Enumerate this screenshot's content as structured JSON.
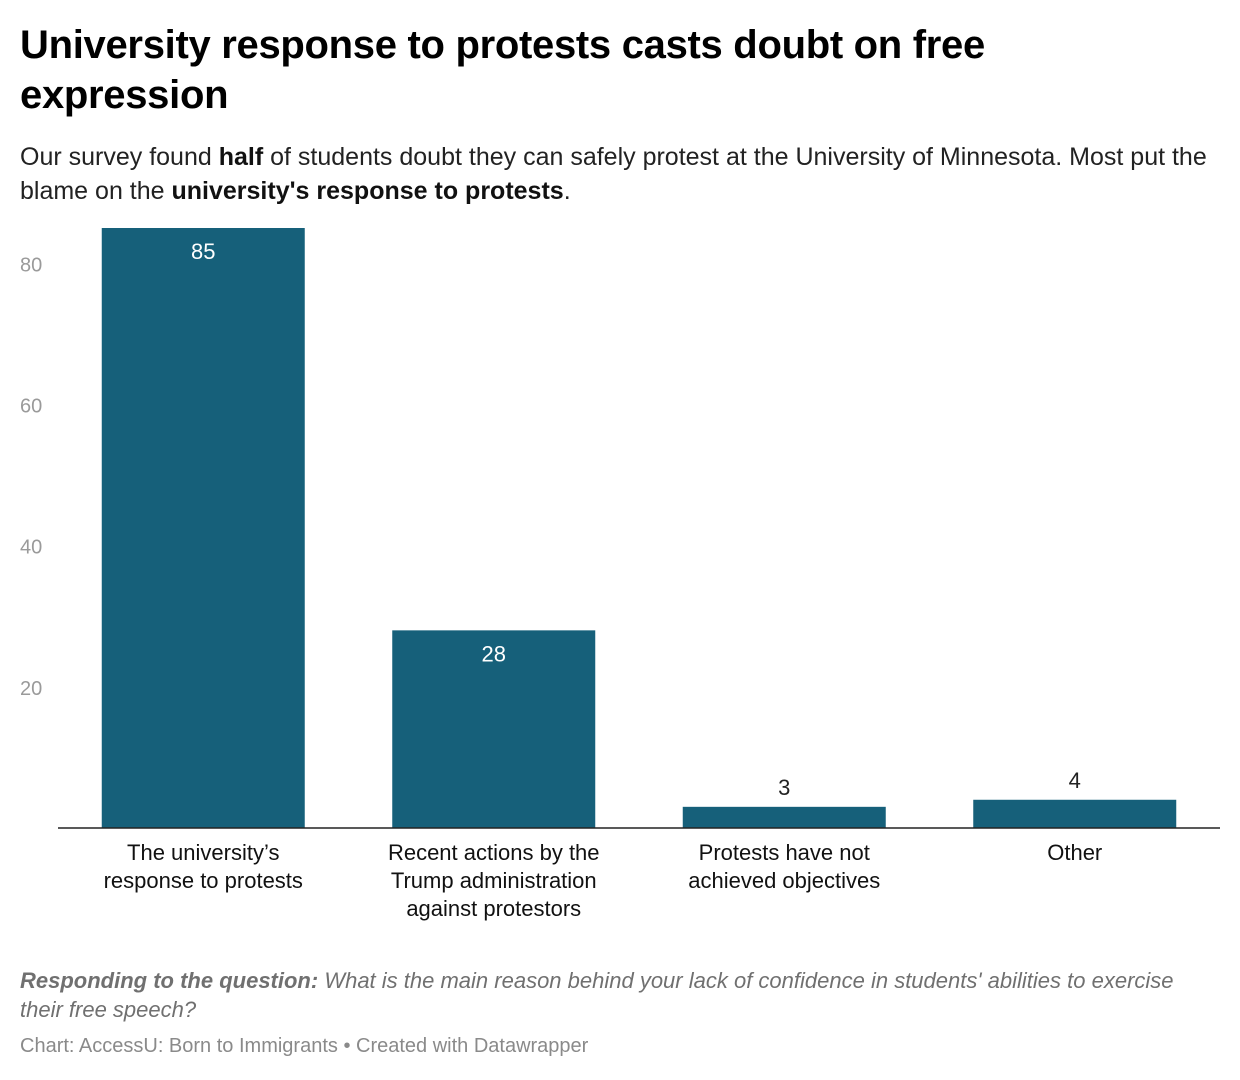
{
  "header": {
    "title": "University response to protests casts doubt on free expression",
    "subtitle_parts": [
      {
        "text": "Our survey found ",
        "bold": false
      },
      {
        "text": "half",
        "bold": true
      },
      {
        "text": " of students doubt they can safely protest at the University of Minnesota. Most put the blame on the ",
        "bold": false
      },
      {
        "text": "university's response to protests",
        "bold": true
      },
      {
        "text": ".",
        "bold": false
      }
    ]
  },
  "chart_data": {
    "type": "bar",
    "title": "University response to protests casts doubt on free expression",
    "xlabel": "",
    "ylabel": "",
    "categories": [
      [
        "The university’s",
        "response to protests"
      ],
      [
        "Recent actions by the",
        "Trump administration",
        "against protestors"
      ],
      [
        "Protests have not",
        "achieved objectives"
      ],
      [
        "Other"
      ]
    ],
    "values": [
      85,
      28,
      3,
      4
    ],
    "ylim": [
      0,
      85
    ],
    "yticks": [
      20,
      40,
      60,
      80
    ],
    "grid": false,
    "bar_color": "#16607a",
    "label_color_inside": "#ffffff",
    "label_color_outside": "#222222",
    "tick_color": "#9a9a9a"
  },
  "footer": {
    "question_label": "Responding to the question:",
    "question_text": " What is the main reason behind your lack of confidence in students' abilities to exercise their free speech?",
    "credit": "Chart: AccessU: Born to Immigrants • Created with Datawrapper"
  }
}
